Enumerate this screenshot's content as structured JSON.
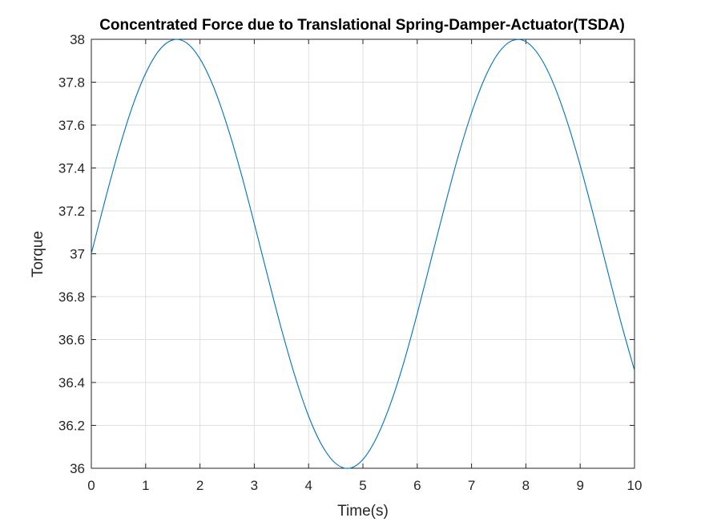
{
  "chart_data": {
    "type": "line",
    "title": "Concentrated Force due to Translational Spring-Damper-Actuator(TSDA)",
    "xlabel": "Time(s)",
    "ylabel": "Torque",
    "xlim": [
      0,
      10
    ],
    "ylim": [
      36,
      38
    ],
    "xticks": [
      "0",
      "1",
      "2",
      "3",
      "4",
      "5",
      "6",
      "7",
      "8",
      "9",
      "10"
    ],
    "yticks": [
      "36",
      "36.2",
      "36.4",
      "36.6",
      "36.8",
      "37",
      "37.2",
      "37.4",
      "37.6",
      "37.8",
      "38"
    ],
    "grid": true,
    "series": [
      {
        "color": "#0072bd",
        "x": [
          0,
          0.25,
          0.5,
          0.75,
          1,
          1.25,
          1.5,
          1.75,
          2,
          2.25,
          2.5,
          2.75,
          3,
          3.25,
          3.5,
          3.75,
          4,
          4.25,
          4.5,
          4.75,
          5,
          5.25,
          5.5,
          5.75,
          6,
          6.25,
          6.5,
          6.75,
          7,
          7.25,
          7.5,
          7.75,
          8,
          8.25,
          8.5,
          8.75,
          9,
          9.25,
          9.5,
          9.75,
          10
        ],
        "y": [
          37,
          37.247,
          37.479,
          37.682,
          37.841,
          37.949,
          37.997,
          37.984,
          37.909,
          37.778,
          37.598,
          37.382,
          37.141,
          36.892,
          36.649,
          36.429,
          36.243,
          36.105,
          36.022,
          36.0,
          36.041,
          36.142,
          36.295,
          36.491,
          36.721,
          36.968,
          37.215,
          37.451,
          37.657,
          37.823,
          37.938,
          37.994,
          37.989,
          37.922,
          37.798,
          37.624,
          37.412,
          37.174,
          36.925,
          36.681,
          36.456
        ]
      }
    ]
  }
}
